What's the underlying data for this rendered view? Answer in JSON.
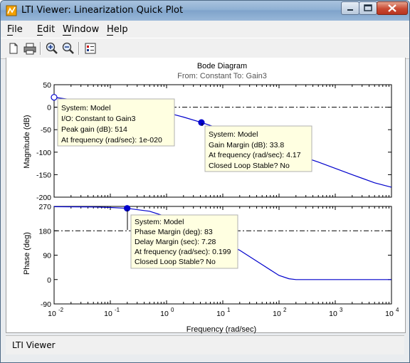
{
  "window": {
    "title": "LTI Viewer: Linearization Quick Plot"
  },
  "menu": {
    "file": "File",
    "edit": "Edit",
    "window": "Window",
    "help": "Help"
  },
  "toolbar": {
    "icons": [
      "new-file-icon",
      "print-icon",
      "zoom-in-icon",
      "zoom-out-icon",
      "plot-configuration-icon"
    ]
  },
  "plot": {
    "title": "Bode Diagram",
    "subtitle": "From: Constant  To: Gain3",
    "xlabel": "Frequency  (rad/sec)",
    "mag_ylabel": "Magnitude (dB)",
    "phase_ylabel": "Phase (deg)"
  },
  "status": {
    "text": "LTI Viewer"
  },
  "datatips": {
    "peak": {
      "line1": "System: Model",
      "line2": "I/O: Constant to Gain3",
      "line3": "Peak gain (dB): 514",
      "line4": "At frequency (rad/sec): 1e-020"
    },
    "gain_margin": {
      "line1": "System: Model",
      "line2": "Gain Margin (dB): 33.8",
      "line3": "At frequency (rad/sec): 4.17",
      "line4": "Closed Loop Stable? No"
    },
    "phase_margin": {
      "line1": "System: Model",
      "line2": "Phase Margin (deg): 83",
      "line3": "Delay Margin (sec): 7.28",
      "line4": "At frequency (rad/sec): 0.199",
      "line5": "Closed Loop Stable? No"
    }
  },
  "colors": {
    "curve": "#0000cc",
    "datatip_bg": "#ffffe1",
    "titlebar": "#8fb0d3",
    "close_button": "#c94a33"
  },
  "chart_data": [
    {
      "type": "line",
      "name": "magnitude",
      "xscale": "log",
      "xlim": [
        0.01,
        10000
      ],
      "ylim": [
        -200,
        50
      ],
      "yticks": [
        50,
        0,
        -50,
        -100,
        -150,
        -200
      ],
      "x": [
        0.01,
        0.02,
        0.05,
        0.1,
        0.2,
        0.5,
        1,
        2,
        4.17,
        10,
        20,
        50,
        100,
        200,
        500,
        1000,
        2000,
        5000,
        10000
      ],
      "y": [
        22,
        17,
        12,
        8,
        3,
        -5,
        -12,
        -22,
        -34,
        -50,
        -62,
        -78,
        -90,
        -105,
        -122,
        -136,
        -150,
        -168,
        -178
      ],
      "reference_line": 0,
      "markers": [
        {
          "x": 0.01,
          "y": 22,
          "style": "open"
        },
        {
          "x": 4.17,
          "y": -34,
          "style": "filled"
        }
      ]
    },
    {
      "type": "line",
      "name": "phase",
      "xscale": "log",
      "xlim": [
        0.01,
        10000
      ],
      "ylim": [
        -90,
        270
      ],
      "yticks": [
        270,
        180,
        90,
        0,
        -90
      ],
      "x": [
        0.01,
        0.05,
        0.1,
        0.199,
        0.5,
        1,
        2,
        5,
        10,
        20,
        50,
        100,
        150,
        200,
        500,
        1000,
        10000
      ],
      "y": [
        269,
        268,
        266,
        263,
        252,
        232,
        210,
        175,
        140,
        108,
        55,
        15,
        3,
        0,
        0,
        0,
        0
      ],
      "reference_line": 180,
      "markers": [
        {
          "x": 0.199,
          "y": 263,
          "style": "filled"
        }
      ]
    }
  ],
  "axis": {
    "xtick_base": "10",
    "xtick_exponents": [
      "-2",
      "-1",
      "0",
      "1",
      "2",
      "3",
      "4"
    ]
  }
}
